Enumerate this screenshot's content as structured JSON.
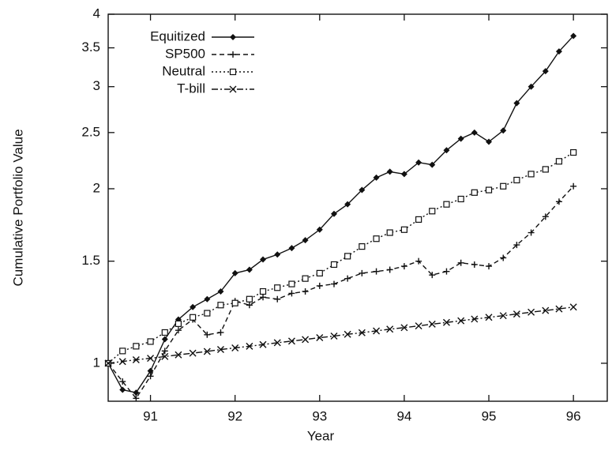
{
  "chart_data": {
    "type": "line",
    "x_label": "Year",
    "y_label": "Cumulative Portfolio Value",
    "x": [
      90.5,
      90.67,
      90.83,
      91,
      91.17,
      91.33,
      91.5,
      91.67,
      91.83,
      92,
      92.17,
      92.33,
      92.5,
      92.67,
      92.83,
      93,
      93.17,
      93.33,
      93.5,
      93.67,
      93.83,
      94,
      94.17,
      94.33,
      94.5,
      94.67,
      94.83,
      95,
      95.17,
      95.33,
      95.5,
      95.67,
      95.83,
      96
    ],
    "series": [
      {
        "name": "Equitized",
        "color": "#111111",
        "marker": "diamond",
        "line_style": "solid",
        "values": [
          1.0,
          0.9,
          0.89,
          0.97,
          1.1,
          1.19,
          1.25,
          1.29,
          1.33,
          1.43,
          1.45,
          1.51,
          1.54,
          1.58,
          1.63,
          1.7,
          1.81,
          1.88,
          1.99,
          2.09,
          2.14,
          2.12,
          2.22,
          2.2,
          2.33,
          2.44,
          2.5,
          2.41,
          2.52,
          2.81,
          3.0,
          3.19,
          3.45,
          3.67
        ]
      },
      {
        "name": "SP500",
        "color": "#111111",
        "marker": "plus",
        "line_style": "dashed",
        "values": [
          1.0,
          0.93,
          0.87,
          0.95,
          1.05,
          1.14,
          1.19,
          1.12,
          1.13,
          1.28,
          1.26,
          1.3,
          1.29,
          1.32,
          1.33,
          1.36,
          1.37,
          1.4,
          1.43,
          1.44,
          1.45,
          1.47,
          1.5,
          1.42,
          1.44,
          1.49,
          1.48,
          1.47,
          1.52,
          1.6,
          1.68,
          1.79,
          1.9,
          2.02
        ]
      },
      {
        "name": "Neutral",
        "color": "#111111",
        "marker": "square",
        "line_style": "dotted",
        "values": [
          1.0,
          1.05,
          1.07,
          1.09,
          1.13,
          1.17,
          1.2,
          1.22,
          1.26,
          1.27,
          1.29,
          1.33,
          1.35,
          1.37,
          1.4,
          1.43,
          1.48,
          1.53,
          1.59,
          1.64,
          1.68,
          1.7,
          1.77,
          1.83,
          1.88,
          1.92,
          1.97,
          1.99,
          2.02,
          2.07,
          2.12,
          2.16,
          2.23,
          2.31
        ]
      },
      {
        "name": "T-bill",
        "color": "#111111",
        "marker": "cross",
        "line_style": "dashdot",
        "values": [
          1.0,
          1.007,
          1.014,
          1.02,
          1.027,
          1.034,
          1.041,
          1.048,
          1.056,
          1.063,
          1.07,
          1.077,
          1.085,
          1.092,
          1.099,
          1.107,
          1.114,
          1.122,
          1.129,
          1.137,
          1.145,
          1.152,
          1.16,
          1.168,
          1.176,
          1.184,
          1.192,
          1.2,
          1.208,
          1.216,
          1.225,
          1.233,
          1.241,
          1.25
        ]
      }
    ],
    "xlim": [
      90.5,
      96.4
    ],
    "xticks": [
      91,
      92,
      93,
      94,
      95,
      96
    ],
    "ylim": [
      0.86,
      4
    ],
    "yticks": [
      1,
      1.5,
      2,
      2.5,
      3,
      3.5,
      4
    ],
    "log_y": true,
    "grid": false,
    "legend": "upper-left"
  }
}
